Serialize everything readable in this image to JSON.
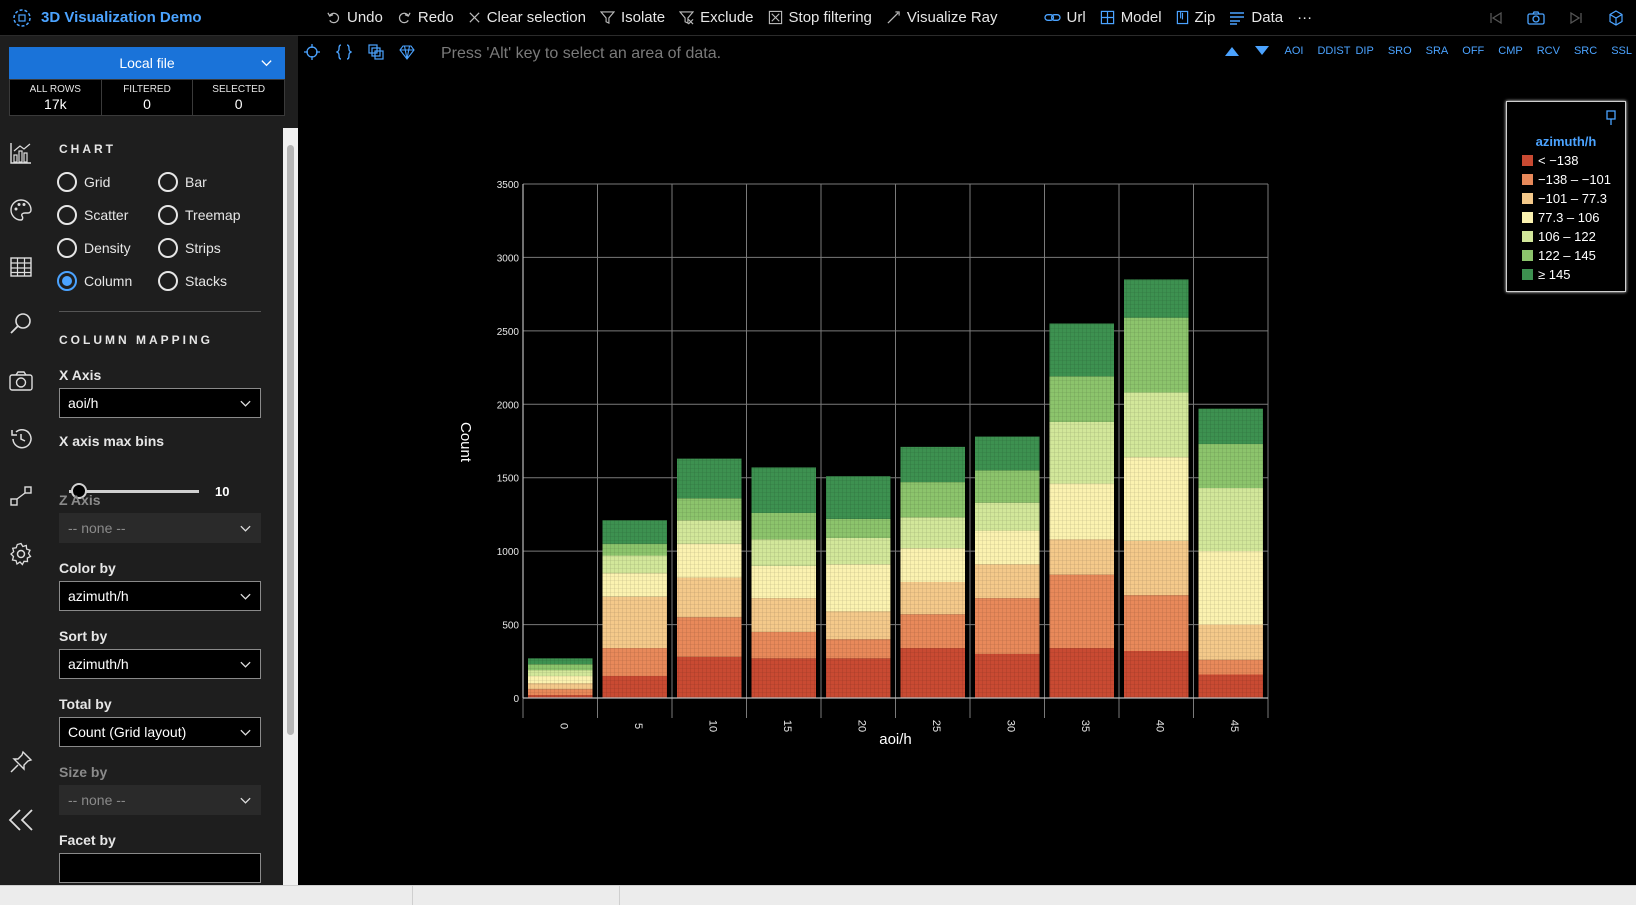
{
  "app": {
    "title": "3D Visualization Demo"
  },
  "toolbar": {
    "undo": "Undo",
    "redo": "Redo",
    "clear_selection": "Clear selection",
    "isolate": "Isolate",
    "exclude": "Exclude",
    "stop_filtering": "Stop filtering",
    "visualize_ray": "Visualize Ray",
    "url": "Url",
    "model": "Model",
    "zip": "Zip",
    "data": "Data",
    "more": "···"
  },
  "source": {
    "label": "Local file"
  },
  "counts": {
    "all_rows_label": "ALL ROWS",
    "all_rows": "17k",
    "filtered_label": "FILTERED",
    "filtered": "0",
    "selected_label": "SELECTED",
    "selected": "0"
  },
  "chart_section": {
    "heading": "CHART",
    "types": [
      "Grid",
      "Bar",
      "Scatter",
      "Treemap",
      "Density",
      "Strips",
      "Column",
      "Stacks"
    ],
    "selected": "Column"
  },
  "mapping": {
    "heading": "COLUMN MAPPING",
    "x_axis_label": "X Axis",
    "x_axis_value": "aoi/h",
    "max_bins_label": "X axis max bins",
    "max_bins_value": "10",
    "max_bins_fraction": 0.08,
    "z_axis_label": "Z Axis",
    "z_axis_value": "-- none --",
    "color_label": "Color by",
    "color_value": "azimuth/h",
    "sort_label": "Sort by",
    "sort_value": "azimuth/h",
    "total_label": "Total by",
    "total_value": "Count (Grid layout)",
    "size_label": "Size by",
    "size_value": "-- none --",
    "facet_label": "Facet by"
  },
  "main": {
    "hint": "Press 'Alt' key to select an area of data.",
    "abbreviations": [
      "AOI",
      "DDIST",
      "DIP",
      "SRO",
      "SRA",
      "OFF",
      "CMP",
      "RCV",
      "SRC",
      "SSL"
    ]
  },
  "legend": {
    "title": "azimuth/h",
    "items": [
      {
        "label": "< −138",
        "color": "#c94a32"
      },
      {
        "label": "−138 – −101",
        "color": "#e8895a"
      },
      {
        "label": "−101 – 77.3",
        "color": "#f4c98a"
      },
      {
        "label": "77.3 – 106",
        "color": "#fbf2b0"
      },
      {
        "label": "106 – 122",
        "color": "#d2e79a"
      },
      {
        "label": "122 – 145",
        "color": "#8cc46c"
      },
      {
        "label": "≥ 145",
        "color": "#3d9150"
      }
    ]
  },
  "chart_data": {
    "type": "bar",
    "stacked": true,
    "xlabel": "aoi/h",
    "ylabel": "Count",
    "ylim": [
      0,
      3500
    ],
    "yticks": [
      0,
      500,
      1000,
      1500,
      2000,
      2500,
      3000,
      3500
    ],
    "categories": [
      "0",
      "5",
      "10",
      "15",
      "20",
      "25",
      "30",
      "35",
      "40",
      "45"
    ],
    "series": [
      {
        "name": "< −138",
        "values": [
          20,
          150,
          280,
          270,
          270,
          340,
          300,
          340,
          320,
          160
        ]
      },
      {
        "name": "−138 – −101",
        "values": [
          40,
          190,
          270,
          180,
          130,
          230,
          380,
          500,
          380,
          100
        ]
      },
      {
        "name": "−101 – 77.3",
        "values": [
          40,
          350,
          270,
          230,
          190,
          220,
          230,
          240,
          370,
          240
        ]
      },
      {
        "name": "77.3 – 106",
        "values": [
          50,
          160,
          230,
          220,
          320,
          230,
          230,
          380,
          570,
          500
        ]
      },
      {
        "name": "106 – 122",
        "values": [
          40,
          120,
          160,
          180,
          180,
          210,
          190,
          420,
          440,
          430
        ]
      },
      {
        "name": "122 – 145",
        "values": [
          40,
          80,
          150,
          180,
          130,
          240,
          220,
          310,
          510,
          300
        ]
      },
      {
        "name": "≥ 145",
        "values": [
          40,
          160,
          270,
          310,
          290,
          240,
          230,
          360,
          260,
          240
        ]
      }
    ],
    "grid": true,
    "legend_position": "top-right"
  }
}
